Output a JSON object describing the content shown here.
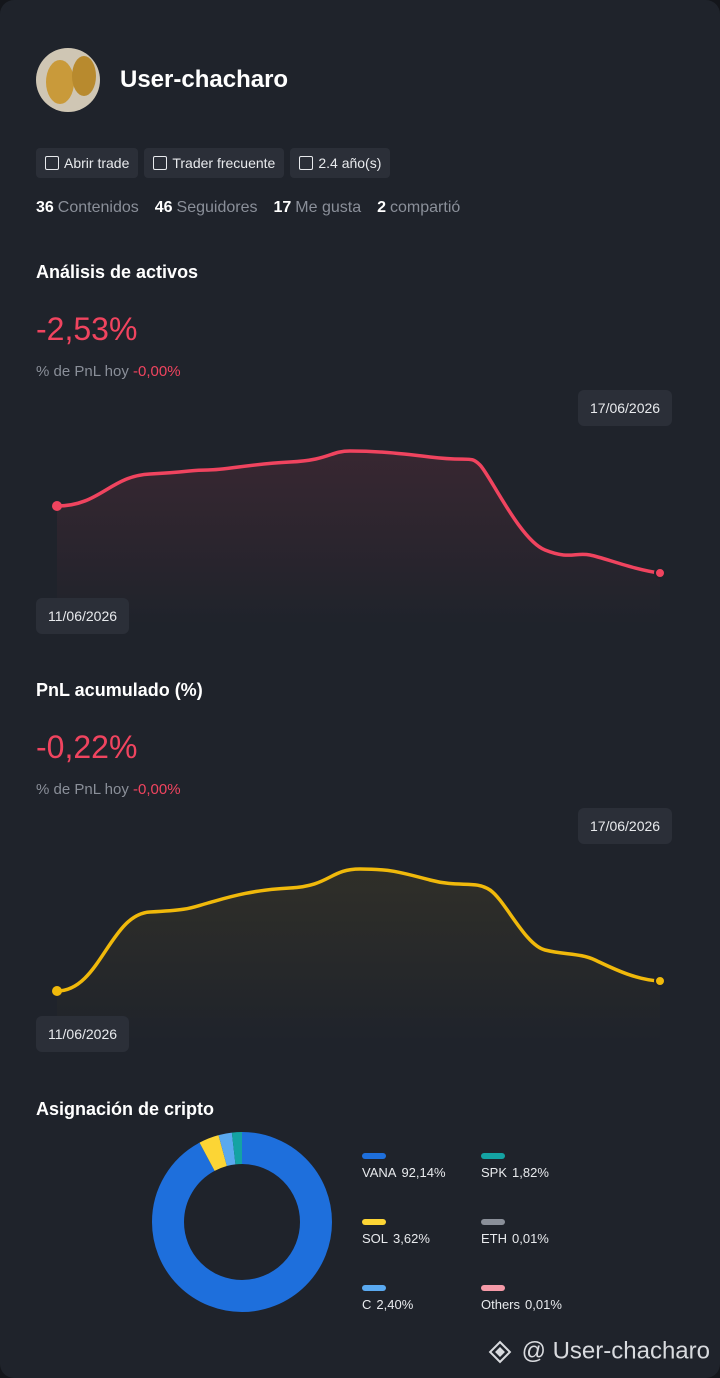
{
  "profile": {
    "username": "User-chacharo",
    "badges": [
      "Abrir trade",
      "Trader frecuente",
      "2.4 año(s)"
    ],
    "stats": [
      {
        "value": 36,
        "label": "Contenidos"
      },
      {
        "value": 46,
        "label": "Seguidores"
      },
      {
        "value": 17,
        "label": "Me gusta"
      },
      {
        "value": 2,
        "label": "compartió"
      }
    ]
  },
  "analysis": {
    "title": "Análisis de activos",
    "value": "-2,53%",
    "today_label": "% de PnL hoy",
    "today_value": "-0,00%",
    "start_date": "11/06/2026",
    "end_date": "17/06/2026"
  },
  "cumulative": {
    "title": "PnL acumulado (%)",
    "value": "-0,22%",
    "today_label": "% de PnL hoy",
    "today_value": "-0,00%",
    "start_date": "11/06/2026",
    "end_date": "17/06/2026"
  },
  "chart_data": {
    "type": "pie",
    "title": "Asignación de cripto",
    "categories": [
      "VANA",
      "SOL",
      "C",
      "SPK",
      "ETH",
      "Others"
    ],
    "values": [
      92.14,
      3.62,
      2.4,
      1.82,
      0.01,
      0.01
    ],
    "value_labels": [
      "92,14%",
      "3,62%",
      "2,40%",
      "1,82%",
      "0,01%",
      "0,01%"
    ],
    "colors": [
      "#1e6fdc",
      "#fcd535",
      "#5aa9f0",
      "#14a3a3",
      "#8a8f99",
      "#f59aa8"
    ]
  },
  "watermark": "@ User-chacharo"
}
